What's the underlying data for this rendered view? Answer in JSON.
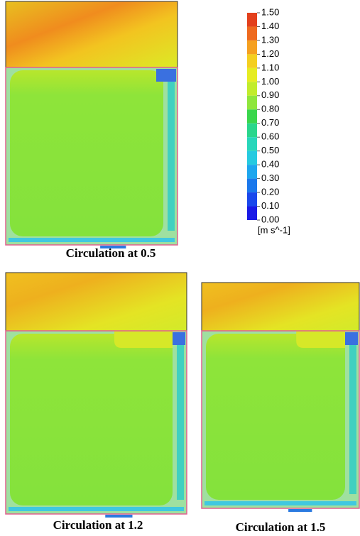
{
  "colorbar": {
    "ticks": [
      {
        "value": 1.5,
        "label": "1.50"
      },
      {
        "value": 1.4,
        "label": "1.40"
      },
      {
        "value": 1.3,
        "label": "1.30"
      },
      {
        "value": 1.2,
        "label": "1.20"
      },
      {
        "value": 1.1,
        "label": "1.10"
      },
      {
        "value": 1.0,
        "label": "1.00"
      },
      {
        "value": 0.9,
        "label": "0.90"
      },
      {
        "value": 0.8,
        "label": "0.80"
      },
      {
        "value": 0.7,
        "label": "0.70"
      },
      {
        "value": 0.6,
        "label": "0.60"
      },
      {
        "value": 0.5,
        "label": "0.50"
      },
      {
        "value": 0.4,
        "label": "0.40"
      },
      {
        "value": 0.3,
        "label": "0.30"
      },
      {
        "value": 0.2,
        "label": "0.20"
      },
      {
        "value": 0.1,
        "label": "0.10"
      },
      {
        "value": 0,
        "label": "0.00"
      }
    ],
    "colors": [
      "#e3401c",
      "#ee6a1f",
      "#f5a020",
      "#f4cf20",
      "#e6ec22",
      "#c2ec2c",
      "#8fe63c",
      "#3ad64c",
      "#2ad68c",
      "#28d6ba",
      "#26cae0",
      "#1ea6ee",
      "#1a78ec",
      "#1a48ec",
      "#1a1ae6"
    ],
    "unit": "[m s^-1]"
  },
  "panels": [
    {
      "caption": "Circulation at 0.5"
    },
    {
      "caption": "Circulation at 1.2"
    },
    {
      "caption": "Circulation at 1.5"
    }
  ]
}
